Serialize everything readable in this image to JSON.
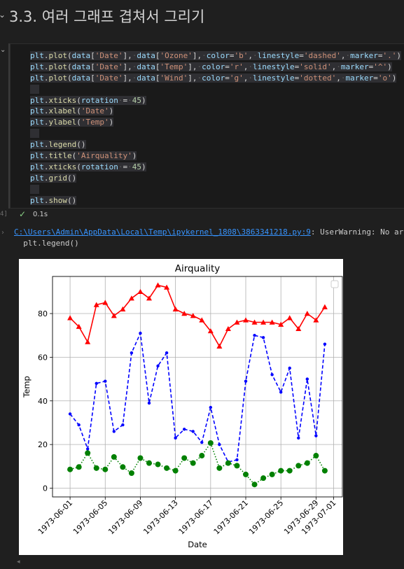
{
  "heading": {
    "chevron": "⌄",
    "title": "3.3. 여러 그래프 겹쳐서 그리기"
  },
  "cell": {
    "chevron": "⌄",
    "execution_count": "4]",
    "status_icon": "check-icon",
    "duration": "0.1s",
    "code_lines": [
      "plt.plot(data['Date'], data['Ozone'], color='b', linestyle='dashed', marker='.')",
      "plt.plot(data['Date'], data['Temp'], color='r', linestyle='solid', marker='^')",
      "plt.plot(data['Date'], data['Wind'], color='g', linestyle='dotted', marker='o')",
      "",
      "plt.xticks(rotation = 45)",
      "plt.xlabel('Date')",
      "plt.ylabel('Temp')",
      "",
      "plt.legend()",
      "plt.title('Airquality')",
      "plt.xticks(rotation = 45)",
      "plt.grid()",
      "",
      "plt.show()"
    ]
  },
  "output": {
    "warning_link": "C:\\Users\\Admin\\AppData\\Local\\Temp\\ipykernel_1808\\3863341218.py:9",
    "warning_text": ": UserWarning: No artis",
    "warning_line2": "  plt.legend()"
  },
  "colors": {
    "ozone": "#0000ff",
    "temp": "#ff0000",
    "wind": "#008000",
    "background": "#1f1f1f"
  },
  "chart_data": {
    "type": "line",
    "title": "Airquality",
    "xlabel": "Date",
    "ylabel": "Temp",
    "grid": true,
    "legend": "top-right (empty)",
    "x_start": "1973-06-01",
    "x_end": "1973-06-30",
    "xlim": [
      "1973-05-30",
      "1973-07-02"
    ],
    "ylim": [
      -4,
      97
    ],
    "x_ticks": [
      "1973-06-01",
      "1973-06-05",
      "1973-06-09",
      "1973-06-13",
      "1973-06-17",
      "1973-06-21",
      "1973-06-25",
      "1973-06-29",
      "1973-07-01"
    ],
    "y_ticks": [
      0,
      20,
      40,
      60,
      80
    ],
    "series": [
      {
        "key": "ozone",
        "color": "#0000ff",
        "linestyle": "dashed",
        "marker": ".",
        "values": [
          34,
          29,
          18,
          48,
          49,
          26,
          29,
          62,
          71,
          39,
          56,
          62,
          23,
          27,
          26,
          21,
          37,
          20,
          12,
          13,
          49,
          70,
          69,
          52,
          44,
          55,
          23,
          50,
          24,
          66
        ]
      },
      {
        "key": "temp",
        "color": "#ff0000",
        "linestyle": "solid",
        "marker": "^",
        "values": [
          78,
          74,
          67,
          84,
          85,
          79,
          82,
          87,
          90,
          87,
          93,
          92,
          82,
          80,
          79,
          77,
          72,
          65,
          73,
          76,
          77,
          76,
          76,
          76,
          75,
          78,
          73,
          80,
          77,
          83
        ]
      },
      {
        "key": "wind",
        "color": "#008000",
        "linestyle": "dotted",
        "marker": "o",
        "values": [
          8.6,
          9.7,
          16.1,
          9.2,
          8.6,
          14.3,
          9.7,
          6.9,
          13.8,
          11.5,
          10.9,
          9.2,
          8.0,
          13.8,
          11.5,
          14.9,
          20.7,
          9.2,
          11.5,
          10.3,
          6.3,
          1.7,
          4.6,
          6.3,
          8.0,
          8.0,
          10.3,
          11.5,
          14.9,
          8.0
        ]
      }
    ]
  }
}
